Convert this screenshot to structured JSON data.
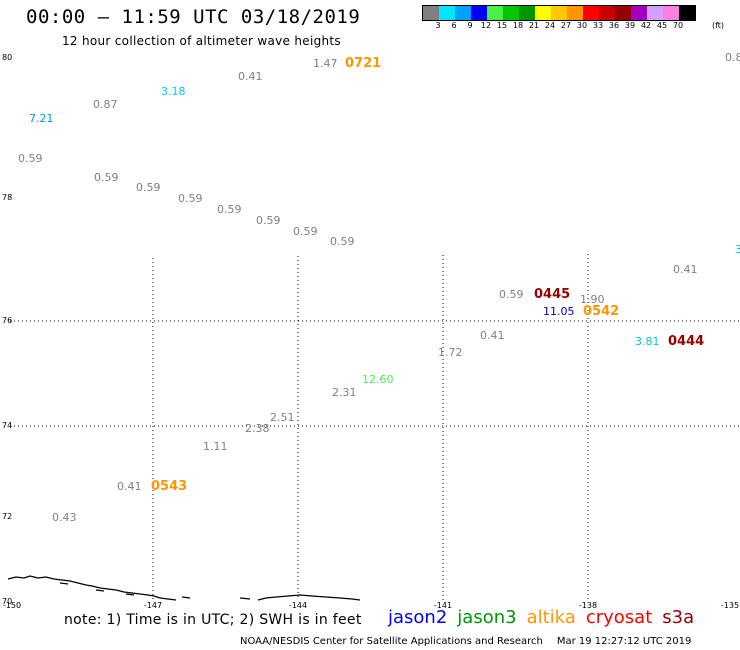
{
  "header": {
    "title": "00:00 – 11:59 UTC 03/18/2019",
    "subtitle": "12 hour collection of altimeter wave heights"
  },
  "legend": {
    "colors": [
      "#808080",
      "#00e6ff",
      "#00a0ff",
      "#0000ff",
      "#46f046",
      "#00c800",
      "#009600",
      "#ffff00",
      "#ffc800",
      "#ff9600",
      "#ff0000",
      "#c80000",
      "#960000",
      "#a000c0",
      "#d2a0ff",
      "#ff80e0",
      "#000000"
    ],
    "labels": [
      "3",
      "6",
      "9",
      "12",
      "15",
      "18",
      "21",
      "24",
      "27",
      "30",
      "33",
      "36",
      "39",
      "42",
      "45",
      "70"
    ],
    "unit": "(ft)"
  },
  "axes": {
    "lat_labels": [
      "80",
      "78",
      "76",
      "74",
      "72",
      "70"
    ],
    "lon_labels": [
      "-150",
      "-147",
      "-144",
      "-141",
      "-138",
      "-135"
    ]
  },
  "observations": [
    {
      "text": "1.47",
      "color": "#808080"
    },
    {
      "text": "0.41",
      "color": "#808080"
    },
    {
      "text": "3.18",
      "color": "#00c8e6"
    },
    {
      "text": "0.87",
      "color": "#808080"
    },
    {
      "text": "7.21",
      "color": "#00a0d0"
    },
    {
      "text": "0.59",
      "color": "#808080"
    },
    {
      "text": "0.59",
      "color": "#808080"
    },
    {
      "text": "0.59",
      "color": "#808080"
    },
    {
      "text": "0.59",
      "color": "#808080"
    },
    {
      "text": "0.59",
      "color": "#808080"
    },
    {
      "text": "0.59",
      "color": "#808080"
    },
    {
      "text": "0.59",
      "color": "#808080"
    },
    {
      "text": "0.59",
      "color": "#808080"
    },
    {
      "text": "0.41",
      "color": "#808080"
    },
    {
      "text": "0.59",
      "color": "#808080"
    },
    {
      "text": "1.90",
      "color": "#808080"
    },
    {
      "text": "11.05",
      "color": "#0000c8"
    },
    {
      "text": "0.41",
      "color": "#808080"
    },
    {
      "text": "1.72",
      "color": "#808080"
    },
    {
      "text": "3.81",
      "color": "#00c8e6"
    },
    {
      "text": "12.60",
      "color": "#46f046"
    },
    {
      "text": "2.31",
      "color": "#808080"
    },
    {
      "text": "2.51",
      "color": "#808080"
    },
    {
      "text": "2.38",
      "color": "#808080"
    },
    {
      "text": "1.11",
      "color": "#808080"
    },
    {
      "text": "0.41",
      "color": "#808080"
    },
    {
      "text": "0.43",
      "color": "#808080"
    },
    {
      "text": "0.8",
      "color": "#808080"
    },
    {
      "text": "3",
      "color": "#00c8e6"
    }
  ],
  "passes": [
    {
      "text": "0721",
      "color": "#ff9600"
    },
    {
      "text": "0445",
      "color": "#960000"
    },
    {
      "text": "0542",
      "color": "#ff9600"
    },
    {
      "text": "0444",
      "color": "#960000"
    },
    {
      "text": "0543",
      "color": "#ff9600"
    }
  ],
  "footer": {
    "note": "note: 1) Time is in UTC; 2) SWH is in feet",
    "satellites": [
      {
        "name": "jason2",
        "color": "#0000ff"
      },
      {
        "name": "jason3",
        "color": "#009600"
      },
      {
        "name": "altika",
        "color": "#ff9600"
      },
      {
        "name": "cryosat",
        "color": "#ff0000"
      },
      {
        "name": "s3a",
        "color": "#960000"
      }
    ],
    "credit": "NOAA/NESDIS Center for Satellite Applications and Research",
    "timestamp": "Mar 19 12:27:12 UTC 2019"
  }
}
